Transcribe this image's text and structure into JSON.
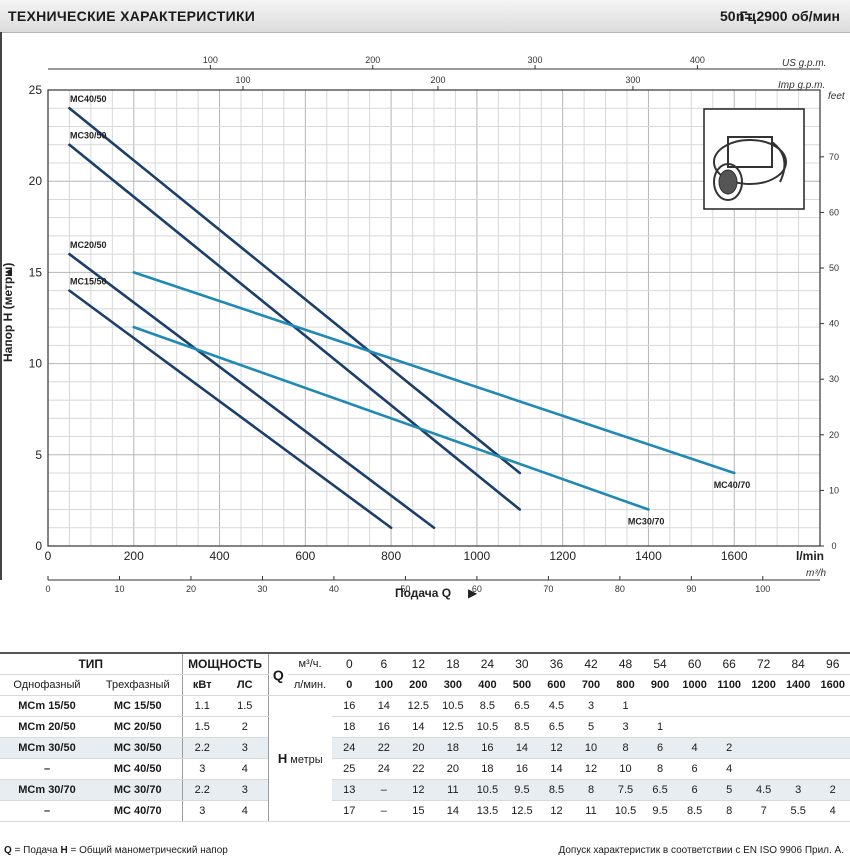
{
  "header": {
    "title": "ТЕХНИЧЕСКИЕ ХАРАКТЕРИСТИКИ",
    "freq": "50 Гц",
    "rpm": "n= 2900  об/мин"
  },
  "chart_data": {
    "type": "line",
    "ylabel": "Напор H  (метры)",
    "xlabel": "Подача  Q",
    "xunit_primary": "l/min",
    "xunit_m3h": "m³/h",
    "xunit_usgpm": "US g.p.m.",
    "xunit_impgpm": "Imp g.p.m.",
    "yunit_right": "feet",
    "xlim": [
      0,
      1800
    ],
    "ylim": [
      0,
      25
    ],
    "grid": true,
    "x_ticks": [
      "0",
      "200",
      "400",
      "600",
      "800",
      "1000",
      "1200",
      "1400",
      "1600"
    ],
    "y_ticks": [
      "0",
      "5",
      "10",
      "15",
      "20",
      "25"
    ],
    "feet_ticks": [
      "0",
      "10",
      "20",
      "30",
      "40",
      "50",
      "60",
      "70"
    ],
    "m3h_ticks": [
      "0",
      "10",
      "20",
      "30",
      "40",
      "50",
      "60",
      "70",
      "80",
      "90",
      "100"
    ],
    "usgpm_ticks": [
      "100",
      "200",
      "300",
      "400"
    ],
    "impgpm_ticks": [
      "100",
      "200",
      "300"
    ],
    "series": [
      {
        "name": "MC40/50",
        "color": "#1b3f6b",
        "x": [
          50,
          1100
        ],
        "y": [
          24,
          4
        ]
      },
      {
        "name": "MC30/50",
        "color": "#1b3f6b",
        "x": [
          50,
          1100
        ],
        "y": [
          22,
          2
        ]
      },
      {
        "name": "MC20/50",
        "color": "#1b3f6b",
        "x": [
          50,
          900
        ],
        "y": [
          16,
          1
        ]
      },
      {
        "name": "MC15/50",
        "color": "#1b3f6b",
        "x": [
          50,
          800
        ],
        "y": [
          14,
          1
        ]
      },
      {
        "name": "MC40/70",
        "color": "#1f8ab4",
        "x": [
          200,
          1600
        ],
        "y": [
          15,
          4
        ]
      },
      {
        "name": "MC30/70",
        "color": "#1f8ab4",
        "x": [
          200,
          1400
        ],
        "y": [
          12,
          2
        ]
      }
    ]
  },
  "table": {
    "h_type": "ТИП",
    "h_power": "МОЩНОСТЬ",
    "h_single": "Однофазный",
    "h_three": "Трехфазный",
    "h_kw": "кВт",
    "h_hp": "ЛС",
    "h_q": "Q",
    "h_m3h": "м³/ч.",
    "h_lmin": "л/мин.",
    "h_h": "H",
    "h_h_unit": "метры",
    "m3h": [
      "0",
      "6",
      "12",
      "18",
      "24",
      "30",
      "36",
      "42",
      "48",
      "54",
      "60",
      "66",
      "72",
      "84",
      "96"
    ],
    "lmin": [
      "0",
      "100",
      "200",
      "300",
      "400",
      "500",
      "600",
      "700",
      "800",
      "900",
      "1000",
      "1100",
      "1200",
      "1400",
      "1600"
    ],
    "rows": [
      {
        "single": "MCm 15/50",
        "three": "MC 15/50",
        "kw": "1.1",
        "hp": "1.5",
        "h": [
          "16",
          "14",
          "12.5",
          "10.5",
          "8.5",
          "6.5",
          "4.5",
          "3",
          "1",
          "",
          "",
          "",
          "",
          "",
          ""
        ]
      },
      {
        "single": "MCm 20/50",
        "three": "MC 20/50",
        "kw": "1.5",
        "hp": "2",
        "h": [
          "18",
          "16",
          "14",
          "12.5",
          "10.5",
          "8.5",
          "6.5",
          "5",
          "3",
          "1",
          "",
          "",
          "",
          "",
          ""
        ]
      },
      {
        "single": "MCm 30/50",
        "three": "MC 30/50",
        "kw": "2.2",
        "hp": "3",
        "h": [
          "24",
          "22",
          "20",
          "18",
          "16",
          "14",
          "12",
          "10",
          "8",
          "6",
          "4",
          "2",
          "",
          "",
          ""
        ]
      },
      {
        "single": "–",
        "three": "MC 40/50",
        "kw": "3",
        "hp": "4",
        "h": [
          "25",
          "24",
          "22",
          "20",
          "18",
          "16",
          "14",
          "12",
          "10",
          "8",
          "6",
          "4",
          "",
          "",
          ""
        ]
      },
      {
        "single": "MCm 30/70",
        "three": "MC 30/70",
        "kw": "2.2",
        "hp": "3",
        "h": [
          "13",
          "–",
          "12",
          "11",
          "10.5",
          "9.5",
          "8.5",
          "8",
          "7.5",
          "6.5",
          "6",
          "5",
          "4.5",
          "3",
          "2"
        ]
      },
      {
        "single": "–",
        "three": "MC 40/70",
        "kw": "3",
        "hp": "4",
        "h": [
          "17",
          "–",
          "15",
          "14",
          "13.5",
          "12.5",
          "12",
          "11",
          "10.5",
          "9.5",
          "8.5",
          "8",
          "7",
          "5.5",
          "4"
        ]
      }
    ]
  },
  "footer": {
    "left_q": "Q",
    "left_q_text": " = Подача   ",
    "left_h": "H",
    "left_h_text": " = Общий манометрический напор",
    "right": "Допуск характеристик в соответствии с EN ISO 9906 Прил. А."
  }
}
